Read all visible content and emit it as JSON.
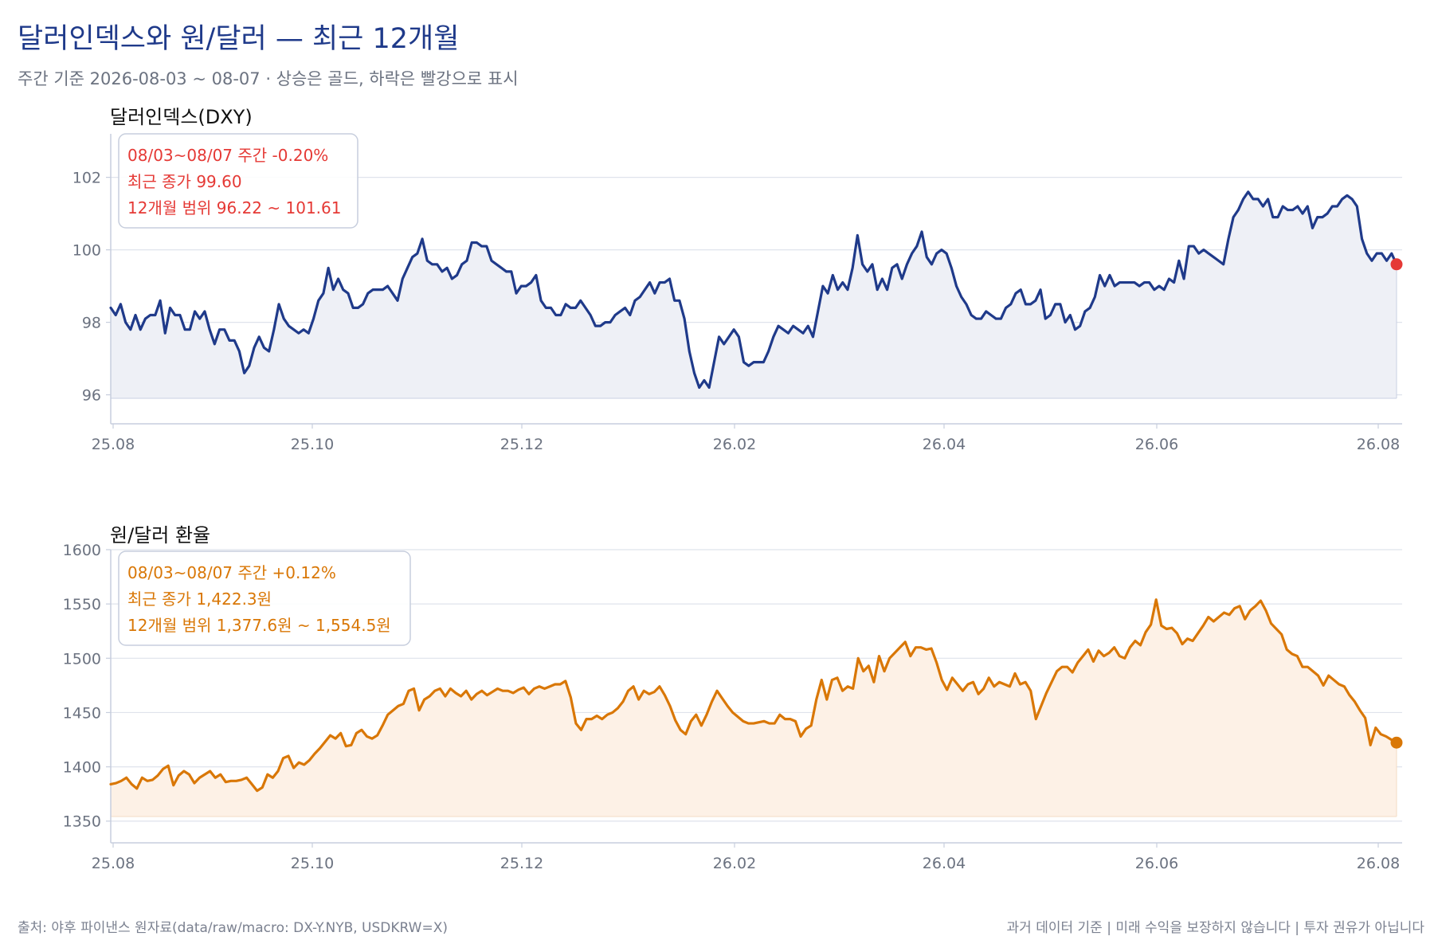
{
  "header": {
    "title": "달러인덱스와 원/달러 — 최근 12개월",
    "subtitle": "주간 기준 2026-08-03 ~ 08-07 · 상승은 골드, 하락은 빨강으로 표시"
  },
  "footer": {
    "source": "출처: 야후 파이낸스 원자료(data/raw/macro: DX-Y.NYB, USDKRW=X)",
    "disclaimer": "과거 데이터 기준 | 미래 수익을 보장하지 않습니다 | 투자 권유가 아닙니다"
  },
  "colors": {
    "dxy_line": "#1f3a8a",
    "dxy_fill": "#eef0f6",
    "dxy_annotation": "#e53935",
    "krw_line": "#d97706",
    "krw_fill": "#fdf1e6",
    "krw_annotation": "#d97706",
    "grid": "#dfe3ec",
    "axis": "#c7cedd",
    "tick_text": "#6b7280"
  },
  "chart_data": [
    {
      "type": "line",
      "title": "달러인덱스(DXY)",
      "xlabel": "",
      "ylabel": "",
      "x_ticks": [
        "25.08",
        "25.10",
        "25.12",
        "26.02",
        "26.04",
        "26.06",
        "26.08"
      ],
      "y_ticks": [
        96,
        98,
        100,
        102
      ],
      "ylim": [
        95.2,
        103.2
      ],
      "grid": true,
      "annotation": {
        "line1": "08/03~08/07 주간 -0.20%",
        "line2": "최근 종가 99.60",
        "line3": "12개월 범위 96.22 ~ 101.61"
      },
      "series": [
        {
          "values": [
            98.4,
            98.2,
            98.5,
            98.0,
            97.8,
            98.2,
            97.8,
            98.1,
            98.2,
            98.2,
            98.6,
            97.7,
            98.4,
            98.2,
            98.2,
            97.8,
            97.8,
            98.3,
            98.1,
            98.3,
            97.8,
            97.4,
            97.8,
            97.8,
            97.5,
            97.5,
            97.2,
            96.6,
            96.8,
            97.3,
            97.6,
            97.3,
            97.2,
            97.8,
            98.5,
            98.1,
            97.9,
            97.8,
            97.7,
            97.8,
            97.7,
            98.1,
            98.6,
            98.8,
            99.5,
            98.9,
            99.2,
            98.9,
            98.8,
            98.4,
            98.4,
            98.5,
            98.8,
            98.9,
            98.9,
            98.9,
            99.0,
            98.8,
            98.6,
            99.2,
            99.5,
            99.8,
            99.9,
            100.3,
            99.7,
            99.6,
            99.6,
            99.4,
            99.5,
            99.2,
            99.3,
            99.6,
            99.7,
            100.2,
            100.2,
            100.1,
            100.1,
            99.7,
            99.6,
            99.5,
            99.4,
            99.4,
            98.8,
            99.0,
            99.0,
            99.1,
            99.3,
            98.6,
            98.4,
            98.4,
            98.2,
            98.2,
            98.5,
            98.4,
            98.4,
            98.6,
            98.4,
            98.2,
            97.9,
            97.9,
            98.0,
            98.0,
            98.2,
            98.3,
            98.4,
            98.2,
            98.6,
            98.7,
            98.9,
            99.1,
            98.8,
            99.1,
            99.1,
            99.2,
            98.6,
            98.6,
            98.1,
            97.2,
            96.6,
            96.2,
            96.4,
            96.2,
            96.9,
            97.6,
            97.4,
            97.6,
            97.8,
            97.6,
            96.9,
            96.8,
            96.9,
            96.9,
            96.9,
            97.2,
            97.6,
            97.9,
            97.8,
            97.7,
            97.9,
            97.8,
            97.7,
            97.9,
            97.6,
            98.3,
            99.0,
            98.8,
            99.3,
            98.9,
            99.1,
            98.9,
            99.5,
            100.4,
            99.6,
            99.4,
            99.6,
            98.9,
            99.2,
            98.9,
            99.5,
            99.6,
            99.2,
            99.6,
            99.9,
            100.1,
            100.5,
            99.8,
            99.6,
            99.9,
            100.0,
            99.9,
            99.5,
            99.0,
            98.7,
            98.5,
            98.2,
            98.1,
            98.1,
            98.3,
            98.2,
            98.1,
            98.1,
            98.4,
            98.5,
            98.8,
            98.9,
            98.5,
            98.5,
            98.6,
            98.9,
            98.1,
            98.2,
            98.5,
            98.5,
            98.0,
            98.2,
            97.8,
            97.9,
            98.3,
            98.4,
            98.7,
            99.3,
            99.0,
            99.3,
            99.0,
            99.1,
            99.1,
            99.1,
            99.1,
            99.0,
            99.1,
            99.1,
            98.9,
            99.0,
            98.9,
            99.2,
            99.1,
            99.7,
            99.2,
            100.1,
            100.1,
            99.9,
            100.0,
            99.9,
            99.8,
            99.7,
            99.6,
            100.3,
            100.9,
            101.1,
            101.4,
            101.6,
            101.4,
            101.4,
            101.2,
            101.4,
            100.9,
            100.9,
            101.2,
            101.1,
            101.1,
            101.2,
            101.0,
            101.2,
            100.6,
            100.9,
            100.9,
            101.0,
            101.2,
            101.2,
            101.4,
            101.5,
            101.4,
            101.2,
            100.3,
            99.9,
            99.7,
            99.9,
            99.9,
            99.7,
            99.9,
            99.6
          ],
          "last_value": 99.6
        }
      ]
    },
    {
      "type": "line",
      "title": "원/달러 환율",
      "xlabel": "",
      "ylabel": "",
      "x_ticks": [
        "25.08",
        "25.10",
        "25.12",
        "26.02",
        "26.04",
        "26.06",
        "26.08"
      ],
      "y_ticks": [
        1350,
        1400,
        1450,
        1500,
        1550,
        1600
      ],
      "ylim": [
        1330,
        1600
      ],
      "grid": true,
      "annotation": {
        "line1": "08/03~08/07 주간 +0.12%",
        "line2": "최근 종가 1,422.3원",
        "line3": "12개월 범위 1,377.6원 ~ 1,554.5원"
      },
      "series": [
        {
          "values": [
            1384,
            1385,
            1387,
            1390,
            1384,
            1380,
            1390,
            1387,
            1388,
            1392,
            1398,
            1401,
            1383,
            1392,
            1396,
            1393,
            1385,
            1390,
            1393,
            1396,
            1390,
            1393,
            1386,
            1387,
            1387,
            1388,
            1390,
            1384,
            1378,
            1381,
            1393,
            1390,
            1396,
            1408,
            1410,
            1399,
            1404,
            1402,
            1406,
            1412,
            1417,
            1423,
            1429,
            1426,
            1431,
            1419,
            1420,
            1431,
            1434,
            1428,
            1426,
            1429,
            1438,
            1448,
            1452,
            1456,
            1458,
            1470,
            1472,
            1452,
            1462,
            1465,
            1470,
            1472,
            1465,
            1472,
            1468,
            1465,
            1470,
            1462,
            1467,
            1470,
            1466,
            1469,
            1472,
            1470,
            1470,
            1468,
            1471,
            1473,
            1467,
            1472,
            1474,
            1472,
            1474,
            1476,
            1476,
            1479,
            1464,
            1440,
            1434,
            1444,
            1444,
            1447,
            1444,
            1448,
            1450,
            1454,
            1460,
            1470,
            1474,
            1462,
            1470,
            1467,
            1469,
            1474,
            1466,
            1456,
            1443,
            1434,
            1430,
            1442,
            1448,
            1438,
            1448,
            1460,
            1470,
            1463,
            1456,
            1450,
            1446,
            1442,
            1440,
            1440,
            1441,
            1442,
            1440,
            1440,
            1448,
            1444,
            1444,
            1442,
            1428,
            1435,
            1438,
            1462,
            1480,
            1462,
            1480,
            1482,
            1470,
            1474,
            1472,
            1500,
            1488,
            1493,
            1478,
            1502,
            1488,
            1500,
            1505,
            1510,
            1515,
            1502,
            1510,
            1510,
            1508,
            1509,
            1496,
            1480,
            1471,
            1482,
            1476,
            1470,
            1476,
            1478,
            1467,
            1472,
            1482,
            1474,
            1478,
            1476,
            1474,
            1486,
            1476,
            1478,
            1470,
            1444,
            1456,
            1468,
            1478,
            1488,
            1492,
            1492,
            1487,
            1496,
            1502,
            1508,
            1497,
            1507,
            1502,
            1505,
            1510,
            1502,
            1500,
            1510,
            1516,
            1512,
            1524,
            1531,
            1554,
            1530,
            1527,
            1528,
            1523,
            1513,
            1518,
            1516,
            1523,
            1530,
            1538,
            1534,
            1538,
            1542,
            1540,
            1546,
            1548,
            1536,
            1544,
            1548,
            1553,
            1544,
            1532,
            1527,
            1522,
            1508,
            1504,
            1502,
            1492,
            1492,
            1488,
            1484,
            1475,
            1484,
            1480,
            1476,
            1474,
            1466,
            1460,
            1452,
            1445,
            1420,
            1436,
            1430,
            1428,
            1425,
            1422.3
          ],
          "last_value": 1422.3
        }
      ]
    }
  ]
}
